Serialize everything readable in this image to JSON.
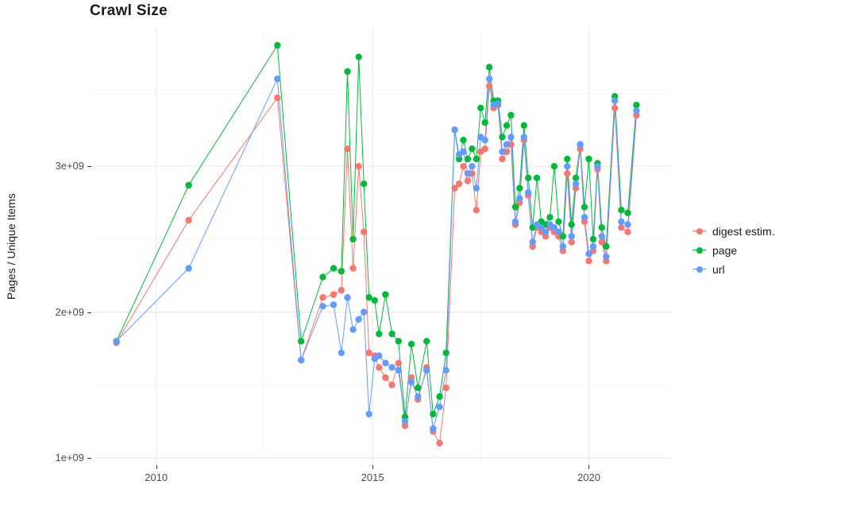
{
  "chart_data": {
    "type": "line",
    "title": "Crawl Size",
    "ylabel": "Pages / Unique Items",
    "xlabel": "",
    "legend_position": "right",
    "values_scale": "1e9",
    "xlim": [
      2008.5,
      2021.9
    ],
    "ylim": [
      0.95,
      3.95
    ],
    "xticks": {
      "values": [
        2010,
        2015,
        2020
      ],
      "labels": [
        "2010",
        "2015",
        "2020"
      ]
    },
    "yticks": {
      "values": [
        1,
        2,
        3
      ],
      "labels": [
        "1e+09",
        "2e+09",
        "3e+09"
      ]
    },
    "grid": {
      "x_minor": [
        2012.5,
        2017.5
      ],
      "y_minor": [
        1.5,
        2.5,
        3.5
      ],
      "major_color": "#e8e8e8",
      "minor_color": "#f3f3f3"
    },
    "x": [
      2009.08,
      2010.75,
      2012.8,
      2013.35,
      2013.85,
      2014.1,
      2014.28,
      2014.42,
      2014.55,
      2014.68,
      2014.8,
      2014.92,
      2015.05,
      2015.15,
      2015.3,
      2015.45,
      2015.6,
      2015.75,
      2015.9,
      2016.05,
      2016.25,
      2016.4,
      2016.55,
      2016.7,
      2016.9,
      2017.0,
      2017.1,
      2017.2,
      2017.3,
      2017.4,
      2017.5,
      2017.6,
      2017.7,
      2017.8,
      2017.9,
      2018.0,
      2018.1,
      2018.2,
      2018.3,
      2018.4,
      2018.5,
      2018.6,
      2018.7,
      2018.8,
      2018.9,
      2019.0,
      2019.1,
      2019.2,
      2019.3,
      2019.4,
      2019.5,
      2019.6,
      2019.7,
      2019.8,
      2019.9,
      2020.0,
      2020.1,
      2020.2,
      2020.3,
      2020.4,
      2020.6,
      2020.75,
      2020.9,
      2021.1
    ],
    "series": [
      {
        "name": "digest estim.",
        "color": "#F8766D",
        "values": [
          1.79,
          2.63,
          3.47,
          1.67,
          2.1,
          2.12,
          2.15,
          3.12,
          2.3,
          3.0,
          2.55,
          1.72,
          1.7,
          1.62,
          1.55,
          1.5,
          1.65,
          1.22,
          1.55,
          1.4,
          1.62,
          1.18,
          1.1,
          1.48,
          2.85,
          2.88,
          3.0,
          2.9,
          2.95,
          2.7,
          3.1,
          3.12,
          3.55,
          3.4,
          3.42,
          3.05,
          3.1,
          3.15,
          2.6,
          2.75,
          3.18,
          2.8,
          2.45,
          2.58,
          2.55,
          2.52,
          2.58,
          2.55,
          2.52,
          2.42,
          2.95,
          2.48,
          2.85,
          3.12,
          2.62,
          2.35,
          2.42,
          2.98,
          2.48,
          2.35,
          3.4,
          2.58,
          2.55,
          3.35
        ]
      },
      {
        "name": "page",
        "color": "#00BA38",
        "values": [
          1.8,
          2.87,
          3.83,
          1.8,
          2.24,
          2.3,
          2.28,
          3.65,
          2.5,
          3.75,
          2.88,
          2.1,
          2.08,
          1.85,
          2.12,
          1.85,
          1.8,
          1.28,
          1.78,
          1.48,
          1.8,
          1.3,
          1.42,
          1.72,
          3.25,
          3.05,
          3.18,
          3.05,
          3.12,
          3.05,
          3.4,
          3.3,
          3.68,
          3.45,
          3.45,
          3.2,
          3.28,
          3.35,
          2.72,
          2.85,
          3.28,
          2.92,
          2.58,
          2.92,
          2.62,
          2.6,
          2.65,
          3.0,
          2.62,
          2.52,
          3.05,
          2.6,
          2.92,
          3.15,
          2.72,
          3.05,
          2.5,
          3.02,
          2.58,
          2.45,
          3.48,
          2.7,
          2.68,
          3.42
        ]
      },
      {
        "name": "url",
        "color": "#619CFF",
        "values": [
          1.8,
          2.3,
          3.6,
          1.67,
          2.04,
          2.05,
          1.72,
          2.1,
          1.88,
          1.95,
          2.0,
          1.3,
          1.68,
          1.7,
          1.65,
          1.62,
          1.6,
          1.25,
          1.52,
          1.42,
          1.6,
          1.2,
          1.35,
          1.6,
          3.25,
          3.08,
          3.1,
          2.95,
          3.0,
          2.85,
          3.2,
          3.18,
          3.6,
          3.42,
          3.43,
          3.1,
          3.15,
          3.2,
          2.62,
          2.78,
          3.2,
          2.82,
          2.48,
          2.6,
          2.58,
          2.55,
          2.6,
          2.58,
          2.55,
          2.45,
          3.0,
          2.52,
          2.88,
          3.15,
          2.65,
          2.4,
          2.45,
          3.0,
          2.52,
          2.38,
          3.45,
          2.62,
          2.6,
          3.38
        ]
      }
    ]
  }
}
